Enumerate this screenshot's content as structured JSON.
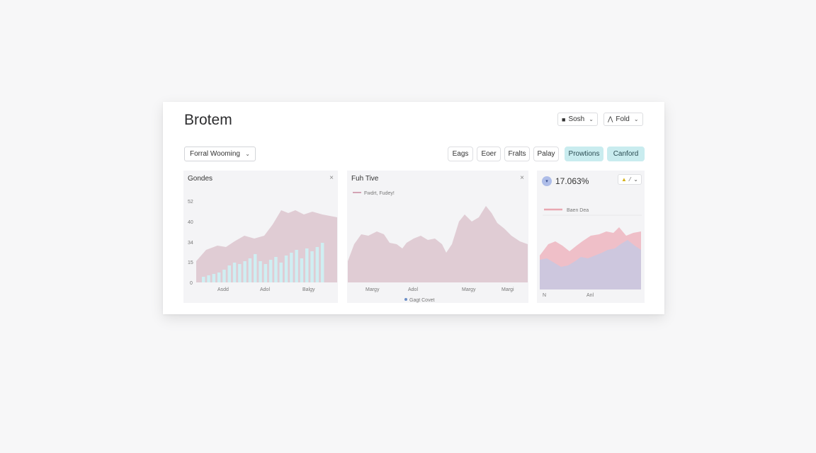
{
  "header": {
    "title": "Brotem",
    "btn_sosh": {
      "label": "Sosh",
      "icon": "square-icon"
    },
    "btn_fold": {
      "label": "Fold",
      "icon": "filter-icon"
    }
  },
  "filters": {
    "select_value": "Forral Wooming",
    "chips": [
      {
        "label": "Eags",
        "active": false
      },
      {
        "label": "Eoer",
        "active": false
      },
      {
        "label": "Fralts",
        "active": false
      },
      {
        "label": "Palay",
        "active": false
      },
      {
        "label": "Prowtions",
        "active": true
      },
      {
        "label": "Canford",
        "active": true
      }
    ]
  },
  "panel1": {
    "title": "Gondes",
    "close": "×",
    "y_ticks": [
      "52",
      "40",
      "34",
      "15",
      "0"
    ],
    "x_ticks": [
      "Asdd",
      "Adol",
      "Balgy"
    ]
  },
  "panel2": {
    "title": "Fuh Tive",
    "close": "×",
    "legend_top": "Fwdrt, Fudey!",
    "x_ticks": [
      "Margy",
      "Adol",
      "Margy",
      "Margi"
    ],
    "legend_bottom": "Gagt Covet"
  },
  "panel3": {
    "kpi_value": "17.063%",
    "kpi_icon": "▾",
    "ctrl_text": "⁄",
    "legend": "Baen Dea",
    "x_ticks": [
      "N",
      "Anl"
    ]
  },
  "colors": {
    "accent_chip": "#c9ecef",
    "area_mauve": "#dcc4ce",
    "bar_blue": "#cfeef2",
    "pink_area": "#eeb9c3",
    "lavender_area": "#c9c8e0"
  }
}
